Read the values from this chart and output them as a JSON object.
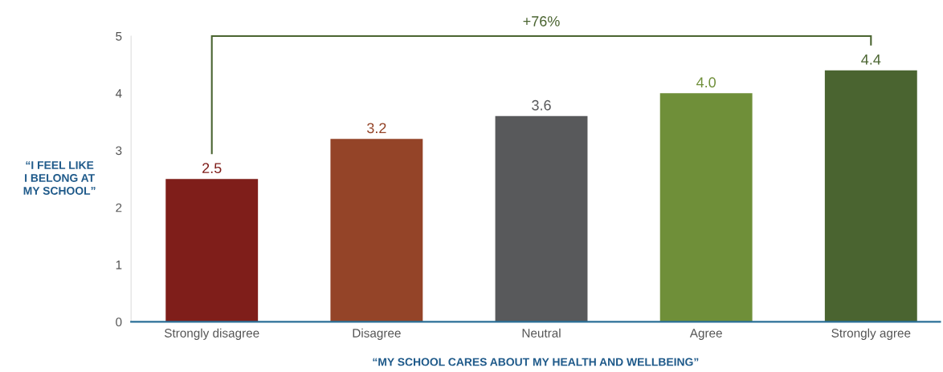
{
  "chart_data": {
    "type": "bar",
    "categories": [
      "Strongly disagree",
      "Disagree",
      "Neutral",
      "Agree",
      "Strongly agree"
    ],
    "values": [
      2.5,
      3.2,
      3.6,
      4.0,
      4.4
    ],
    "colors": [
      "#7f1e1a",
      "#944428",
      "#58595b",
      "#6f8f39",
      "#4a6430"
    ],
    "value_labels": [
      "2.5",
      "3.2",
      "3.6",
      "4.0",
      "4.4"
    ],
    "ylabel": "“I FEEL LIKE\nI BELONG AT\nMY SCHOOL”",
    "xlabel": "“MY SCHOOL CARES ABOUT MY HEALTH AND WELLBEING”",
    "ylim": [
      0,
      5
    ],
    "yticks": [
      0,
      1,
      2,
      3,
      4,
      5
    ],
    "annotations": [
      "+76%"
    ],
    "grid": false,
    "legend": false
  }
}
